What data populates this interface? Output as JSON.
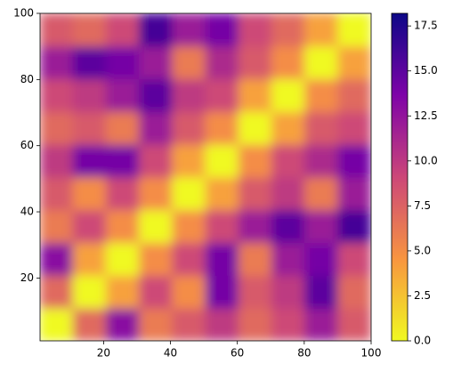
{
  "chart_data": {
    "type": "heatmap",
    "x": [
      6,
      16,
      26,
      36,
      46,
      56,
      66,
      76,
      86,
      95
    ],
    "y": [
      6,
      16,
      26,
      36,
      46,
      56,
      66,
      76,
      86,
      95
    ],
    "z": [
      [
        0,
        7,
        13,
        6,
        8,
        10,
        7,
        9,
        12,
        8
      ],
      [
        7,
        0,
        4,
        9,
        5,
        14,
        8,
        10,
        15,
        7
      ],
      [
        13,
        4,
        0,
        5,
        9,
        14,
        6,
        12,
        14,
        9
      ],
      [
        6,
        9,
        5,
        0,
        5,
        9,
        12,
        15,
        12,
        16
      ],
      [
        8,
        5,
        9,
        5,
        0,
        4,
        8,
        10,
        6,
        12
      ],
      [
        10,
        14,
        14,
        9,
        4,
        0,
        5,
        9,
        11,
        14
      ],
      [
        7,
        8,
        6,
        12,
        8,
        5,
        0,
        4,
        8,
        9
      ],
      [
        9,
        10,
        12,
        15,
        10,
        9,
        4,
        0,
        5,
        7
      ],
      [
        12,
        15,
        14,
        12,
        6,
        11,
        8,
        5,
        0,
        4
      ],
      [
        8,
        7,
        9,
        16,
        12,
        14,
        9,
        7,
        4,
        0
      ]
    ],
    "xlim": [
      1,
      100
    ],
    "ylim": [
      1,
      100
    ],
    "xticks": [
      20,
      40,
      60,
      80,
      100
    ],
    "yticks": [
      20,
      40,
      60,
      80,
      100
    ],
    "colormap": "plasma_r",
    "clim": [
      0,
      18.2
    ],
    "cticks": [
      {
        "value": 0,
        "label": "0.0"
      },
      2.5,
      {
        "value": 5,
        "label": "5.0"
      },
      7.5,
      {
        "value": 10,
        "label": "10.0"
      },
      12.5,
      {
        "value": 15,
        "label": "15.0"
      },
      17.5
    ]
  }
}
